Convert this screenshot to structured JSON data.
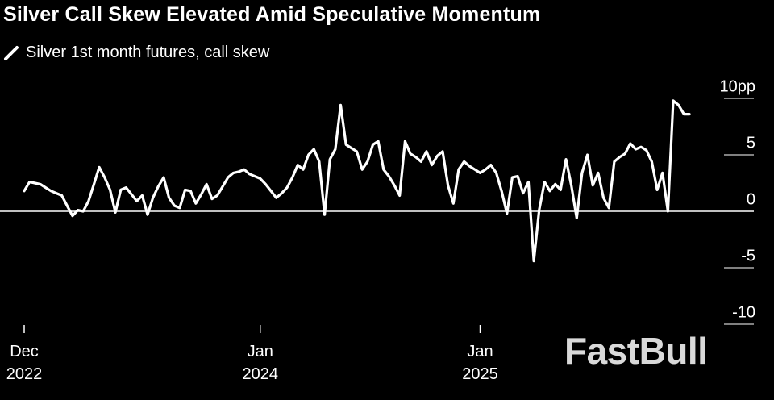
{
  "chart_data": {
    "type": "line",
    "title": "Silver Call Skew Elevated Amid Speculative Momentum",
    "watermark": "FastBull",
    "categories": [
      "Dec 2022",
      null,
      null,
      null,
      null,
      null,
      null,
      null,
      null,
      null,
      null,
      null,
      null,
      null,
      null,
      null,
      null,
      null,
      null,
      null,
      null,
      null,
      null,
      null,
      null,
      null,
      null,
      null,
      null,
      null,
      null,
      null,
      null,
      null,
      null,
      null,
      null,
      null,
      null,
      null,
      null,
      null,
      null,
      null,
      "Jan 2024",
      null,
      null,
      null,
      null,
      null,
      null,
      null,
      null,
      null,
      null,
      null,
      null,
      null,
      null,
      null,
      null,
      null,
      null,
      null,
      null,
      null,
      null,
      null,
      null,
      null,
      null,
      null,
      null,
      null,
      null,
      null,
      null,
      null,
      null,
      null,
      null,
      null,
      null,
      null,
      null,
      "Jan 2025",
      null,
      null,
      null,
      null,
      null,
      null,
      null,
      null,
      null,
      null,
      null,
      null,
      null,
      null,
      null,
      null,
      null,
      null,
      null,
      null,
      null,
      null,
      null,
      null,
      null,
      null,
      null,
      null,
      null,
      null,
      null,
      null,
      null,
      null,
      null,
      null,
      null,
      null,
      null
    ],
    "series": [
      {
        "name": "Silver 1st month futures, call skew",
        "color": "#ffffff",
        "values": [
          1.8,
          2.6,
          2.5,
          2.4,
          2.1,
          1.8,
          1.6,
          1.4,
          0.5,
          -0.4,
          0.1,
          0,
          0.9,
          2.4,
          3.9,
          3.0,
          1.9,
          -0.1,
          1.9,
          2.1,
          1.5,
          0.9,
          1.4,
          -0.3,
          1.2,
          2.2,
          3.0,
          1.2,
          0.5,
          0.3,
          1.9,
          1.8,
          0.7,
          1.5,
          2.4,
          1.1,
          1.4,
          2.2,
          3.0,
          3.4,
          3.5,
          3.7,
          3.3,
          3.1,
          2.9,
          2.4,
          1.8,
          1.2,
          1.6,
          2.1,
          3.0,
          4.1,
          3.7,
          5.0,
          5.5,
          4.4,
          -0.3,
          4.6,
          5.5,
          9.4,
          5.9,
          5.6,
          5.3,
          3.7,
          4.4,
          5.9,
          6.2,
          3.7,
          3.1,
          2.3,
          1.4,
          6.2,
          5.1,
          4.8,
          4.4,
          5.3,
          4.1,
          4.9,
          5.3,
          2.3,
          0.7,
          3.7,
          4.4,
          4.0,
          3.7,
          3.4,
          3.7,
          4.1,
          3.4,
          1.8,
          -0.2,
          3.0,
          3.1,
          1.6,
          2.6,
          -4.4,
          0.1,
          2.6,
          1.8,
          2.4,
          1.9,
          4.6,
          2.3,
          -0.6,
          3.4,
          5.0,
          2.3,
          3.4,
          1.2,
          0.3,
          4.4,
          4.8,
          5.1,
          6.0,
          5.5,
          5.7,
          5.4,
          4.4,
          1.9,
          3.4,
          0.0,
          9.8,
          9.4,
          8.6,
          8.6
        ]
      }
    ],
    "ylim": [
      -10,
      10
    ],
    "yticks": [
      {
        "value": 10,
        "label": "10pp"
      },
      5,
      0,
      -5,
      -10
    ]
  }
}
